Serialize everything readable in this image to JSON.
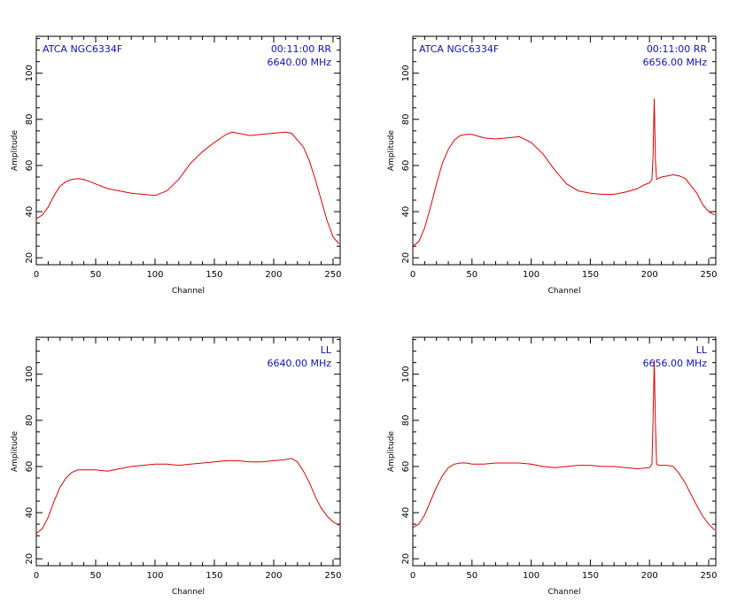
{
  "chart_data": [
    {
      "type": "line",
      "name": "top-left",
      "xlabel": "Channel",
      "ylabel": "Amplitude",
      "xlim": [
        0,
        256
      ],
      "ylim": [
        17,
        116
      ],
      "xticks": [
        0,
        50,
        100,
        150,
        200,
        250
      ],
      "yticks": [
        20,
        40,
        60,
        80,
        100
      ],
      "annotations": {
        "left": "ATCA  NGC6334F",
        "right_line1": "00:11:00  RR",
        "right_line2": "6640.00  MHz"
      },
      "series": [
        {
          "color": "#e00000",
          "x": [
            0,
            5,
            10,
            15,
            20,
            25,
            30,
            35,
            40,
            45,
            50,
            60,
            70,
            80,
            90,
            100,
            110,
            120,
            130,
            140,
            150,
            160,
            165,
            170,
            180,
            190,
            200,
            210,
            215,
            220,
            225,
            230,
            235,
            240,
            245,
            250,
            255
          ],
          "y": [
            37,
            38.5,
            42,
            47,
            51,
            53,
            54,
            54.3,
            54,
            53,
            52,
            50,
            49,
            48,
            47.5,
            47,
            49,
            54,
            61,
            66,
            70,
            73.5,
            74.5,
            74,
            73,
            73.5,
            74,
            74.5,
            74,
            71,
            68,
            62,
            54,
            45,
            36,
            29,
            26
          ]
        }
      ]
    },
    {
      "type": "line",
      "name": "top-right",
      "xlabel": "Channel",
      "ylabel": "Amplitude",
      "xlim": [
        0,
        256
      ],
      "ylim": [
        17,
        116
      ],
      "xticks": [
        0,
        50,
        100,
        150,
        200,
        250
      ],
      "yticks": [
        20,
        40,
        60,
        80,
        100
      ],
      "annotations": {
        "left": "ATCA  NGC6334F",
        "right_line1": "00:11:00  RR",
        "right_line2": "6656.00  MHz"
      },
      "series": [
        {
          "color": "#e00000",
          "x": [
            0,
            5,
            10,
            15,
            20,
            25,
            30,
            35,
            40,
            45,
            50,
            60,
            70,
            80,
            90,
            100,
            110,
            120,
            130,
            140,
            150,
            160,
            170,
            180,
            190,
            195,
            200,
            202,
            203,
            204,
            205,
            206,
            208,
            210,
            215,
            220,
            225,
            230,
            240,
            245,
            250,
            255
          ],
          "y": [
            25,
            27,
            33,
            42,
            52,
            61,
            67,
            71,
            73,
            73.5,
            73.5,
            72,
            71.5,
            72,
            72.5,
            70,
            65,
            58,
            52,
            49,
            48,
            47.5,
            47.5,
            48.5,
            50,
            51.5,
            52.5,
            54,
            64,
            89,
            62,
            54,
            54.5,
            55,
            55.5,
            56,
            55.5,
            54.5,
            48,
            43,
            40,
            38.5
          ]
        }
      ]
    },
    {
      "type": "line",
      "name": "bottom-left",
      "xlabel": "Channel",
      "ylabel": "Amplitude",
      "xlim": [
        0,
        256
      ],
      "ylim": [
        17,
        116
      ],
      "xticks": [
        0,
        50,
        100,
        150,
        200,
        250
      ],
      "yticks": [
        20,
        40,
        60,
        80,
        100
      ],
      "annotations": {
        "left": "",
        "right_line1": "LL",
        "right_line2": "6640.00  MHz"
      },
      "series": [
        {
          "color": "#e00000",
          "x": [
            0,
            5,
            10,
            15,
            20,
            25,
            30,
            35,
            40,
            50,
            60,
            70,
            80,
            90,
            100,
            110,
            120,
            130,
            140,
            150,
            160,
            170,
            180,
            190,
            200,
            210,
            215,
            220,
            225,
            230,
            235,
            240,
            245,
            250,
            255
          ],
          "y": [
            31,
            33,
            38,
            45,
            51,
            55,
            57.5,
            58.5,
            58.5,
            58.5,
            58,
            59,
            60,
            60.5,
            61,
            61,
            60.5,
            61,
            61.5,
            62,
            62.5,
            62.5,
            62,
            62,
            62.5,
            63,
            63.5,
            62,
            58,
            53,
            47,
            42,
            38.5,
            36,
            34.5
          ]
        }
      ]
    },
    {
      "type": "line",
      "name": "bottom-right",
      "xlabel": "Channel",
      "ylabel": "Amplitude",
      "xlim": [
        0,
        256
      ],
      "ylim": [
        17,
        116
      ],
      "xticks": [
        0,
        50,
        100,
        150,
        200,
        250
      ],
      "yticks": [
        20,
        40,
        60,
        80,
        100
      ],
      "annotations": {
        "left": "",
        "right_line1": "LL",
        "right_line2": "6656.00  MHz"
      },
      "series": [
        {
          "color": "#e00000",
          "x": [
            0,
            5,
            10,
            15,
            20,
            25,
            30,
            35,
            40,
            45,
            50,
            60,
            70,
            80,
            90,
            100,
            110,
            120,
            130,
            140,
            150,
            160,
            170,
            180,
            190,
            200,
            202,
            203,
            204,
            205,
            206,
            208,
            210,
            215,
            220,
            225,
            230,
            235,
            240,
            245,
            250,
            255
          ],
          "y": [
            33.5,
            35,
            39,
            45,
            51,
            56,
            59.5,
            61,
            61.5,
            61.5,
            61,
            61,
            61.5,
            61.5,
            61.5,
            61,
            60,
            59.5,
            60,
            60.5,
            60.5,
            60,
            60,
            59.5,
            59,
            59.5,
            61,
            80,
            106,
            78,
            61,
            60.5,
            60.5,
            60.5,
            60,
            57,
            53,
            48,
            43,
            38.5,
            35,
            32.5
          ]
        }
      ]
    }
  ]
}
